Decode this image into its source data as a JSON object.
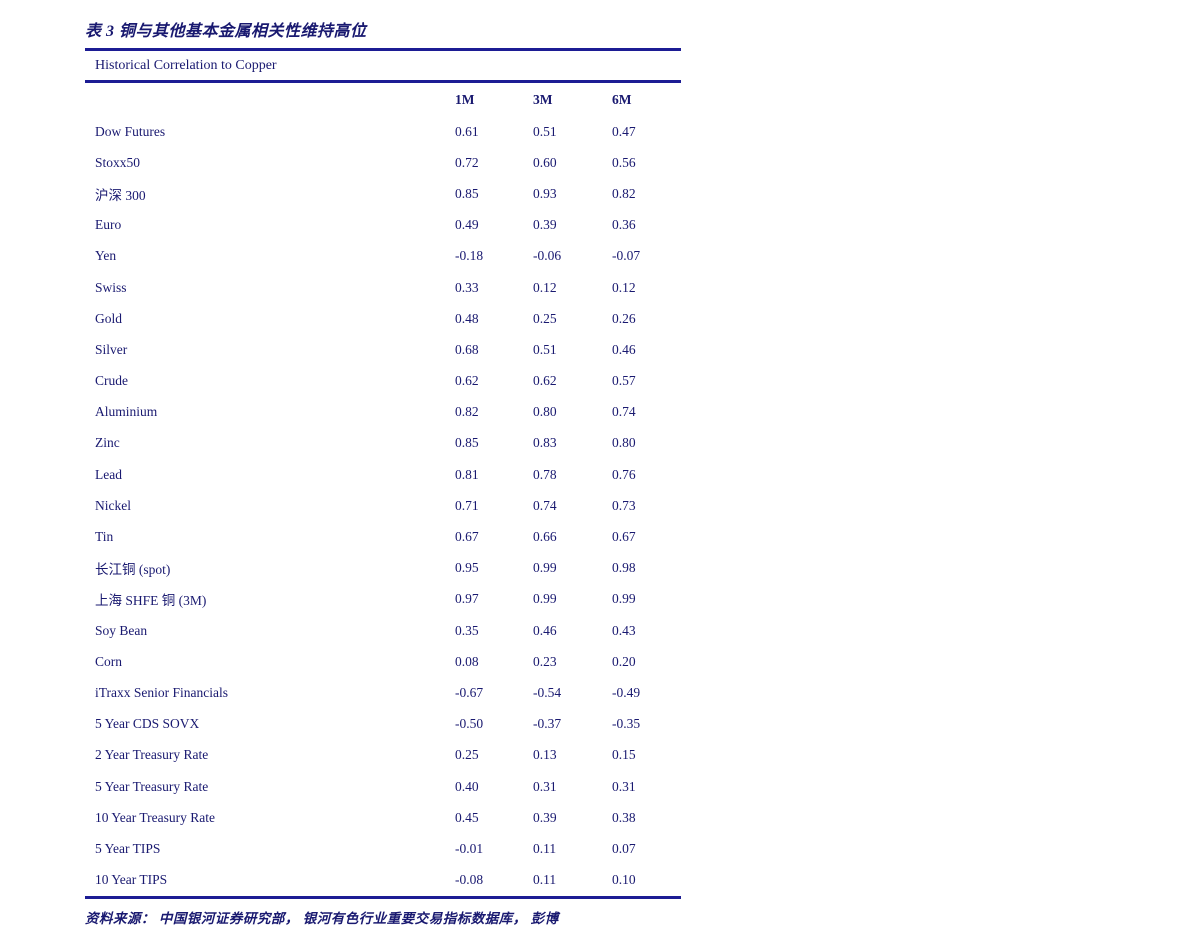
{
  "page": {
    "title": "表 3 铜与其他基本金属相关性维持高位",
    "source_note": "资料来源： 中国银河证券研究部， 银河有色行业重要交易指标数据库， 彭博"
  },
  "colors": {
    "text": "#191970",
    "rule": "#1c1c94",
    "background": "#ffffff"
  },
  "chart_data": {
    "type": "table",
    "title": "Historical Correlation to Copper",
    "columns": [
      "1M",
      "3M",
      "6M"
    ],
    "rows": [
      {
        "label": "Dow Futures",
        "values": [
          "0.61",
          "0.51",
          "0.47"
        ]
      },
      {
        "label": "Stoxx50",
        "values": [
          "0.72",
          "0.60",
          "0.56"
        ]
      },
      {
        "label": "沪深 300",
        "values": [
          "0.85",
          "0.93",
          "0.82"
        ]
      },
      {
        "label": "Euro",
        "values": [
          "0.49",
          "0.39",
          "0.36"
        ]
      },
      {
        "label": "Yen",
        "values": [
          "-0.18",
          "-0.06",
          "-0.07"
        ]
      },
      {
        "label": "Swiss",
        "values": [
          "0.33",
          "0.12",
          "0.12"
        ]
      },
      {
        "label": "Gold",
        "values": [
          "0.48",
          "0.25",
          "0.26"
        ]
      },
      {
        "label": "Silver",
        "values": [
          "0.68",
          "0.51",
          "0.46"
        ]
      },
      {
        "label": "Crude",
        "values": [
          "0.62",
          "0.62",
          "0.57"
        ]
      },
      {
        "label": "Aluminium",
        "values": [
          "0.82",
          "0.80",
          "0.74"
        ]
      },
      {
        "label": "Zinc",
        "values": [
          "0.85",
          "0.83",
          "0.80"
        ]
      },
      {
        "label": "Lead",
        "values": [
          "0.81",
          "0.78",
          "0.76"
        ]
      },
      {
        "label": "Nickel",
        "values": [
          "0.71",
          "0.74",
          "0.73"
        ]
      },
      {
        "label": "Tin",
        "values": [
          "0.67",
          "0.66",
          "0.67"
        ]
      },
      {
        "label": "长江铜 (spot)",
        "values": [
          "0.95",
          "0.99",
          "0.98"
        ]
      },
      {
        "label": "上海 SHFE 铜 (3M)",
        "values": [
          "0.97",
          "0.99",
          "0.99"
        ]
      },
      {
        "label": "Soy Bean",
        "values": [
          "0.35",
          "0.46",
          "0.43"
        ]
      },
      {
        "label": "Corn",
        "values": [
          "0.08",
          "0.23",
          "0.20"
        ]
      },
      {
        "label": "iTraxx Senior Financials",
        "values": [
          "-0.67",
          "-0.54",
          "-0.49"
        ]
      },
      {
        "label": "5 Year CDS SOVX",
        "values": [
          "-0.50",
          "-0.37",
          "-0.35"
        ]
      },
      {
        "label": "2 Year Treasury Rate",
        "values": [
          "0.25",
          "0.13",
          "0.15"
        ]
      },
      {
        "label": "5 Year Treasury Rate",
        "values": [
          "0.40",
          "0.31",
          "0.31"
        ]
      },
      {
        "label": "10 Year Treasury Rate",
        "values": [
          "0.45",
          "0.39",
          "0.38"
        ]
      },
      {
        "label": "5 Year TIPS",
        "values": [
          "-0.01",
          "0.11",
          "0.07"
        ]
      },
      {
        "label": "10 Year TIPS",
        "values": [
          "-0.08",
          "0.11",
          "0.10"
        ]
      }
    ]
  }
}
